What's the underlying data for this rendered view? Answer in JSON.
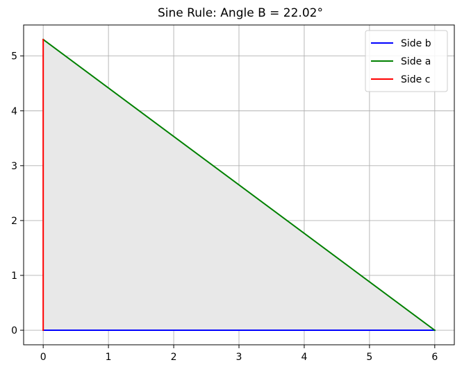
{
  "chart_data": {
    "type": "line",
    "title": "Sine Rule: Angle B = 22.02°",
    "xlabel": "",
    "ylabel": "",
    "xlim": [
      -0.3,
      6.3
    ],
    "ylim": [
      -0.265,
      5.565
    ],
    "xticks": [
      0,
      1,
      2,
      3,
      4,
      5,
      6
    ],
    "yticks": [
      0,
      1,
      2,
      3,
      4,
      5
    ],
    "grid": true,
    "legend_position": "top-right",
    "fill": {
      "polygon": [
        [
          0,
          0
        ],
        [
          6,
          0
        ],
        [
          0,
          5.3
        ]
      ],
      "color": "#e8e8e8"
    },
    "series": [
      {
        "name": "Side b",
        "color": "#0000ff",
        "x": [
          0,
          6
        ],
        "y": [
          0,
          0
        ]
      },
      {
        "name": "Side a",
        "color": "#008000",
        "x": [
          6,
          0
        ],
        "y": [
          0,
          5.3
        ]
      },
      {
        "name": "Side c",
        "color": "#ff0000",
        "x": [
          0,
          0
        ],
        "y": [
          5.3,
          0
        ]
      }
    ]
  }
}
